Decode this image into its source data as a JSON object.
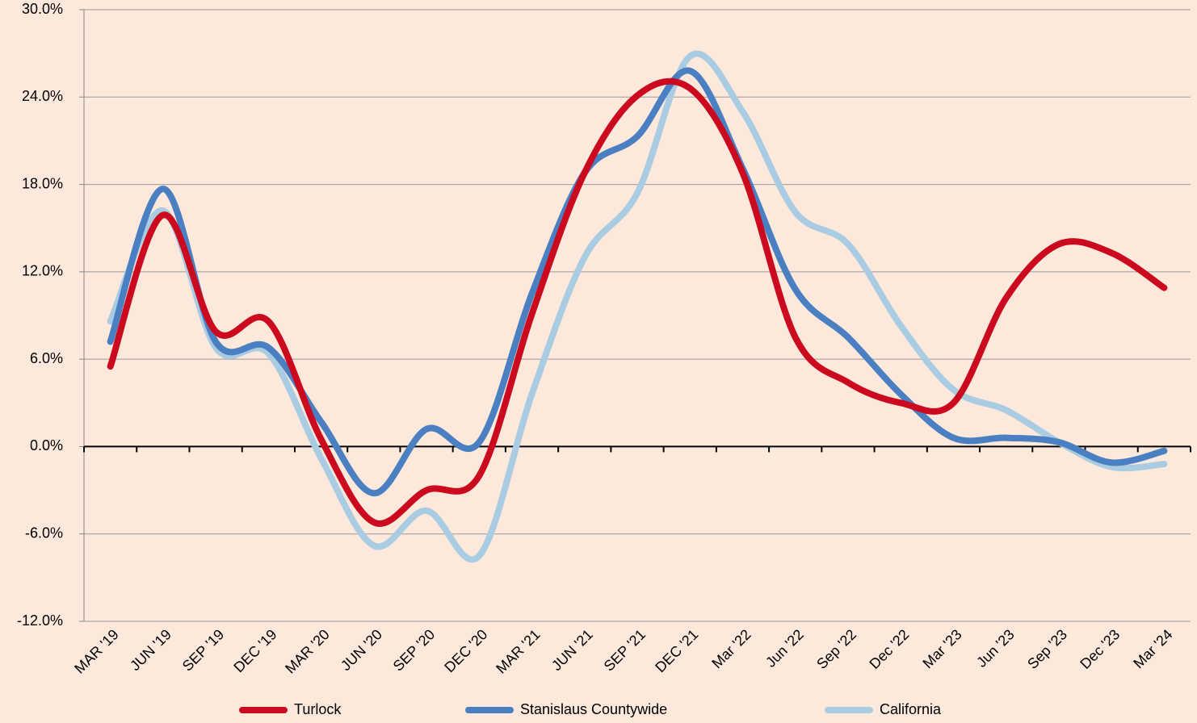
{
  "chart_data": {
    "type": "line",
    "categories": [
      "MAR '19",
      "JUN '19",
      "SEP '19",
      "DEC '19",
      "MAR '20",
      "JUN '20",
      "SEP '20",
      "DEC '20",
      "MAR '21",
      "JUN '21",
      "SEP '21",
      "DEC '21",
      "Mar '22",
      "Jun '22",
      "Sep '22",
      "Dec '22",
      "Mar '23",
      "Jun '23",
      "Sep '23",
      "Dec '23",
      "Mar '24"
    ],
    "series": [
      {
        "name": "Turlock",
        "color": "#cc0a1f",
        "values": [
          5.5,
          15.9,
          7.9,
          8.6,
          0.5,
          -5.2,
          -3.0,
          -2.0,
          9.1,
          18.8,
          24.1,
          24.6,
          18.8,
          7.5,
          4.4,
          3.0,
          3.0,
          10.2,
          13.9,
          13.3,
          10.9
        ]
      },
      {
        "name": "Stanislaus Countywide",
        "color": "#4a7fc1",
        "values": [
          7.2,
          17.7,
          7.2,
          6.8,
          1.7,
          -3.2,
          1.2,
          0.3,
          10.5,
          18.8,
          21.3,
          25.8,
          19.1,
          10.8,
          7.5,
          3.6,
          0.6,
          0.6,
          0.3,
          -1.1,
          -0.3
        ]
      },
      {
        "name": "California",
        "color": "#a9cce3",
        "values": [
          8.6,
          16.2,
          6.8,
          6.4,
          -0.8,
          -6.8,
          -4.4,
          -7.5,
          3.6,
          13.0,
          17.4,
          26.8,
          23.0,
          16.1,
          13.9,
          8.3,
          3.9,
          2.5,
          0.3,
          -1.4,
          -1.2
        ]
      }
    ],
    "ylim": [
      -12,
      30
    ],
    "yticks": [
      {
        "value": -12,
        "label": "-12.0%"
      },
      {
        "value": -6,
        "label": "-6.0%"
      },
      {
        "value": 0,
        "label": "0.0%"
      },
      {
        "value": 6,
        "label": "6.0%"
      },
      {
        "value": 12,
        "label": "12.0%"
      },
      {
        "value": 18,
        "label": "18.0%"
      },
      {
        "value": 24,
        "label": "24.0%"
      },
      {
        "value": 30,
        "label": "30.0%"
      }
    ],
    "grid": true
  }
}
